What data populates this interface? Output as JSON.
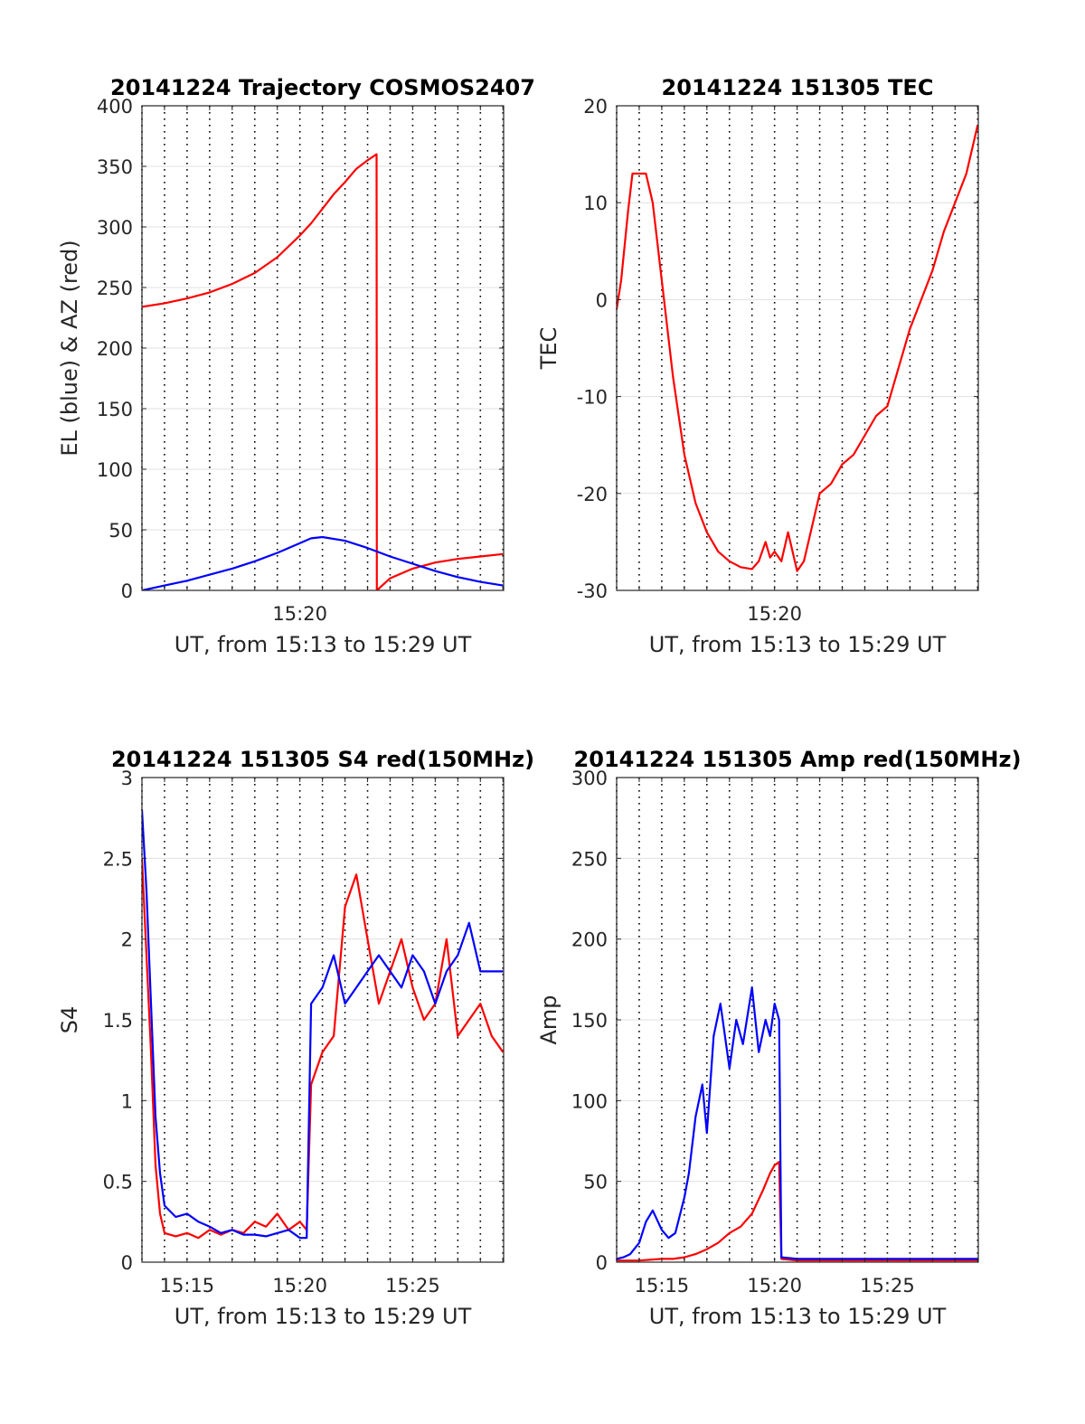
{
  "chart_data": [
    {
      "type": "line",
      "title": "20141224 Trajectory COSMOS2407",
      "xlabel": "UT, from 15:13 to 15:29 UT",
      "ylabel": "EL (blue) & AZ (red)",
      "xlim": [
        13,
        29.03
      ],
      "ylim": [
        0,
        400
      ],
      "yticks": [
        0,
        50,
        100,
        150,
        200,
        250,
        300,
        350,
        400
      ],
      "ytick_labels": [
        "0",
        "50",
        "100",
        "150",
        "200",
        "250",
        "300",
        "350",
        "400"
      ],
      "xticks": [
        20
      ],
      "xtick_labels": [
        "15:20"
      ],
      "grid": true,
      "series": [
        {
          "color": "#ff0000",
          "x": [
            13,
            14,
            15,
            16,
            17,
            18,
            19,
            20,
            20.5,
            21,
            21.5,
            22,
            22.5,
            23,
            23.4,
            23.41,
            24,
            25,
            26,
            27,
            28,
            29
          ],
          "y": [
            234,
            237,
            241,
            246,
            253,
            262,
            275,
            293,
            303,
            315,
            327,
            337,
            348,
            355,
            360,
            0,
            10,
            18,
            23,
            26,
            28,
            30
          ]
        },
        {
          "color": "#0000ff",
          "x": [
            13,
            14,
            15,
            16,
            17,
            18,
            19,
            20,
            20.5,
            21,
            22,
            23,
            24,
            25,
            26,
            27,
            28,
            29
          ],
          "y": [
            0,
            4,
            8,
            13,
            18,
            24,
            31,
            39,
            43,
            44,
            41,
            35,
            28,
            22,
            16,
            11,
            7,
            4
          ]
        }
      ]
    },
    {
      "type": "line",
      "title": "20141224 151305 TEC",
      "xlabel": "UT, from 15:13 to 15:29 UT",
      "ylabel": "TEC",
      "xlim": [
        13,
        29.03
      ],
      "ylim": [
        -30,
        20
      ],
      "yticks": [
        -30,
        -20,
        -10,
        0,
        10,
        20
      ],
      "ytick_labels": [
        "-30",
        "-20",
        "-10",
        "0",
        "10",
        "20"
      ],
      "xticks": [
        20
      ],
      "xtick_labels": [
        "15:20"
      ],
      "grid": true,
      "series": [
        {
          "color": "#ff0000",
          "x": [
            13,
            13.2,
            13.5,
            13.7,
            14,
            14.3,
            14.6,
            15,
            15.5,
            16,
            16.5,
            17,
            17.5,
            18,
            18.5,
            19,
            19.3,
            19.6,
            19.8,
            20,
            20.3,
            20.6,
            20.8,
            21,
            21.3,
            21.6,
            22,
            22.5,
            23,
            23.5,
            24,
            24.5,
            25,
            25.5,
            26,
            26.5,
            27,
            27.5,
            28,
            28.5,
            29
          ],
          "y": [
            -1,
            2,
            9,
            13,
            13,
            13,
            10,
            2,
            -8,
            -16,
            -21,
            -24,
            -26,
            -27,
            -27.6,
            -27.8,
            -27,
            -25,
            -26.6,
            -26,
            -27,
            -24,
            -26,
            -28,
            -27,
            -24,
            -20,
            -19,
            -17,
            -16,
            -14,
            -12,
            -11,
            -7,
            -3,
            0,
            3,
            7,
            10,
            13,
            18
          ]
        }
      ]
    },
    {
      "type": "line",
      "title": "20141224 151305 S4 red(150MHz)",
      "xlabel": "UT, from 15:13 to 15:29 UT",
      "ylabel": "S4",
      "xlim": [
        13,
        29.03
      ],
      "ylim": [
        0,
        3
      ],
      "yticks": [
        0,
        0.5,
        1,
        1.5,
        2,
        2.5,
        3
      ],
      "ytick_labels": [
        "0",
        "0.5",
        "1",
        "1.5",
        "2",
        "2.5",
        "3"
      ],
      "xticks": [
        15,
        20,
        25
      ],
      "xtick_labels": [
        "15:15",
        "15:20",
        "15:25"
      ],
      "grid": true,
      "series": [
        {
          "color": "#ff0000",
          "x": [
            13,
            13.2,
            13.4,
            13.6,
            13.8,
            14,
            14.5,
            15,
            15.5,
            16,
            16.5,
            17,
            17.5,
            18,
            18.5,
            19,
            19.5,
            20,
            20.3,
            20.5,
            21,
            21.5,
            22,
            22.5,
            23,
            23.5,
            24,
            24.5,
            25,
            25.5,
            26,
            26.5,
            27,
            27.5,
            28,
            28.5,
            29
          ],
          "y": [
            2.5,
            1.9,
            1.3,
            0.6,
            0.3,
            0.18,
            0.16,
            0.18,
            0.15,
            0.2,
            0.17,
            0.2,
            0.18,
            0.25,
            0.22,
            0.3,
            0.2,
            0.25,
            0.2,
            1.1,
            1.3,
            1.4,
            2.2,
            2.4,
            2.0,
            1.6,
            1.8,
            2.0,
            1.7,
            1.5,
            1.6,
            2.0,
            1.4,
            1.5,
            1.6,
            1.4,
            1.3
          ]
        },
        {
          "color": "#0000ff",
          "x": [
            13,
            13.2,
            13.4,
            13.6,
            13.8,
            14,
            14.5,
            15,
            15.5,
            16,
            16.5,
            17,
            17.5,
            18,
            18.5,
            19,
            19.5,
            20,
            20.3,
            20.5,
            21,
            21.5,
            22,
            22.5,
            23,
            23.5,
            24,
            24.5,
            25,
            25.5,
            26,
            26.5,
            27,
            27.5,
            28,
            28.5,
            29
          ],
          "y": [
            2.8,
            2.3,
            1.6,
            0.9,
            0.55,
            0.35,
            0.28,
            0.3,
            0.25,
            0.22,
            0.18,
            0.2,
            0.17,
            0.17,
            0.16,
            0.18,
            0.2,
            0.15,
            0.15,
            1.6,
            1.7,
            1.9,
            1.6,
            1.7,
            1.8,
            1.9,
            1.8,
            1.7,
            1.9,
            1.8,
            1.6,
            1.8,
            1.9,
            2.1,
            1.8,
            1.8,
            1.8
          ]
        }
      ]
    },
    {
      "type": "line",
      "title": "20141224 151305 Amp red(150MHz)",
      "xlabel": "UT, from 15:13 to 15:29 UT",
      "ylabel": "Amp",
      "xlim": [
        13,
        29.03
      ],
      "ylim": [
        0,
        300
      ],
      "yticks": [
        0,
        50,
        100,
        150,
        200,
        250,
        300
      ],
      "ytick_labels": [
        "0",
        "50",
        "100",
        "150",
        "200",
        "250",
        "300"
      ],
      "xticks": [
        15,
        20,
        25
      ],
      "xtick_labels": [
        "15:15",
        "15:20",
        "15:25"
      ],
      "grid": true,
      "series": [
        {
          "color": "#ff0000",
          "x": [
            13,
            14,
            15,
            15.5,
            16,
            16.5,
            17,
            17.5,
            18,
            18.5,
            19,
            19.5,
            19.8,
            20,
            20.2,
            20.3,
            21,
            22,
            23,
            24,
            25,
            26,
            27,
            28,
            29
          ],
          "y": [
            1,
            1,
            2,
            2,
            3,
            5,
            8,
            12,
            18,
            22,
            30,
            45,
            55,
            60,
            62,
            2,
            1,
            1,
            1,
            1,
            1,
            1,
            1,
            1,
            1
          ]
        },
        {
          "color": "#0000ff",
          "x": [
            13,
            13.3,
            13.6,
            14,
            14.3,
            14.6,
            15,
            15.3,
            15.6,
            16,
            16.2,
            16.5,
            16.8,
            17,
            17.3,
            17.6,
            18,
            18.3,
            18.6,
            19,
            19.3,
            19.6,
            19.8,
            20,
            20.2,
            20.3,
            21,
            22,
            23,
            24,
            25,
            26,
            27,
            28,
            29
          ],
          "y": [
            2,
            3,
            5,
            12,
            25,
            32,
            20,
            15,
            18,
            40,
            55,
            90,
            110,
            80,
            140,
            160,
            120,
            150,
            135,
            170,
            130,
            150,
            140,
            160,
            150,
            3,
            2,
            2,
            2,
            2,
            2,
            2,
            2,
            2,
            2
          ]
        }
      ]
    }
  ]
}
